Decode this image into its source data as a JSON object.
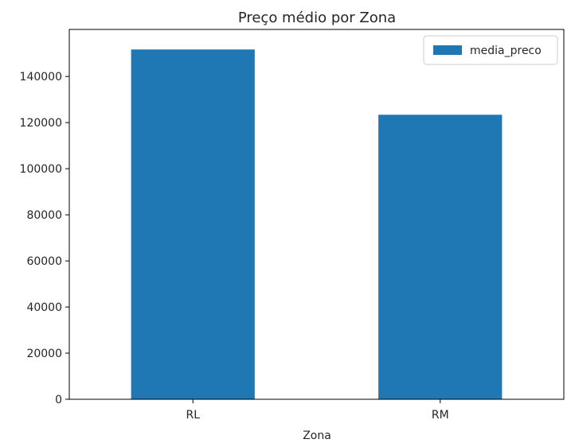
{
  "chart_data": {
    "type": "bar",
    "title": "Preço médio por Zona",
    "xlabel": "Zona",
    "ylabel": "",
    "categories": [
      "RL",
      "RM"
    ],
    "series": [
      {
        "name": "media_preco",
        "values": [
          151700,
          123400
        ],
        "color": "#1f77b4"
      }
    ],
    "ylim": [
      0,
      160400
    ],
    "yticks": [
      0,
      20000,
      40000,
      60000,
      80000,
      100000,
      120000,
      140000
    ],
    "legend": {
      "position": "top-right"
    },
    "grid": false
  }
}
